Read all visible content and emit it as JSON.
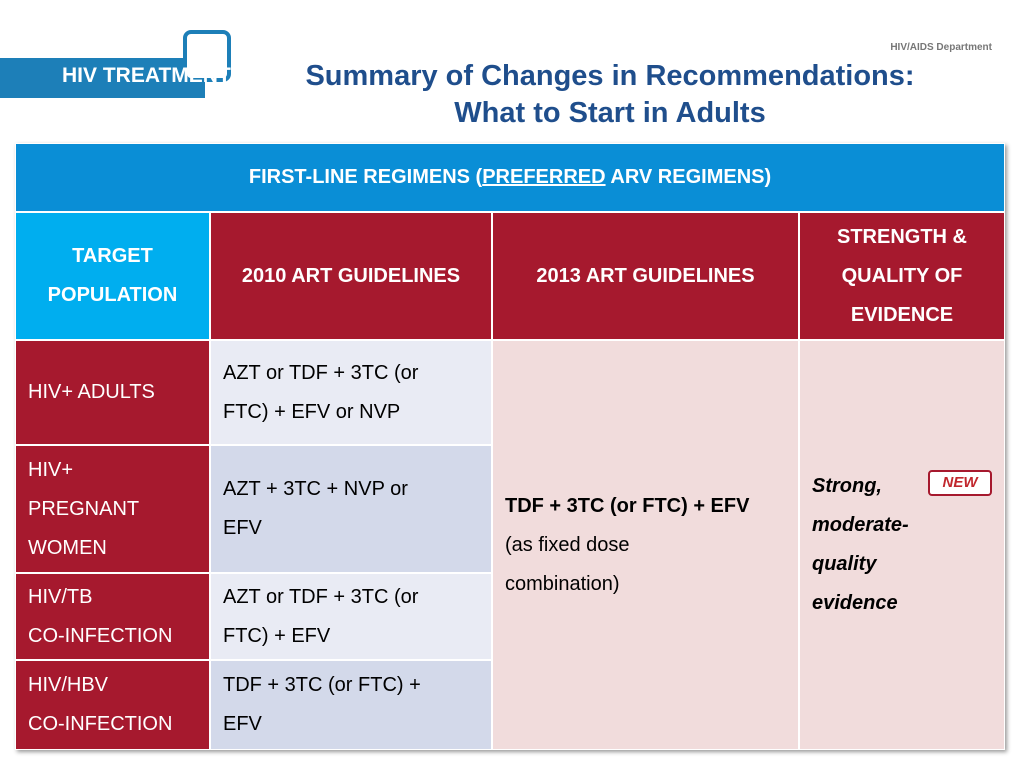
{
  "header": {
    "logo": "HIV TREATMENT",
    "department": "HIV/AIDS Department",
    "title": [
      "Summary of Changes in Recommendations:",
      "What to Start in Adults"
    ]
  },
  "table": {
    "banner": [
      "FIRST-LINE REGIMENS (",
      "PREFERRED",
      " ARV REGIMENS)"
    ],
    "columns": [
      [
        "TARGET",
        "POPULATION"
      ],
      [
        "2010 ART GUIDELINES"
      ],
      [
        "2013 ART GUIDELINES"
      ],
      [
        "STRENGTH &",
        "QUALITY OF",
        "EVIDENCE"
      ]
    ],
    "rows": [
      {
        "population": [
          "HIV+ ADULTS"
        ],
        "guideline_2010": [
          "AZT or TDF + 3TC (or",
          "FTC) + EFV or NVP"
        ]
      },
      {
        "population": [
          "HIV+",
          "PREGNANT",
          "WOMEN"
        ],
        "guideline_2010": [
          "AZT + 3TC + NVP or",
          "EFV"
        ]
      },
      {
        "population": [
          "HIV/TB",
          "CO-INFECTION"
        ],
        "guideline_2010": [
          "AZT or TDF + 3TC (or",
          "FTC) + EFV"
        ]
      },
      {
        "population": [
          "HIV/HBV",
          "CO-INFECTION"
        ],
        "guideline_2010": [
          "TDF + 3TC (or FTC) +",
          "EFV"
        ]
      }
    ],
    "guideline_2013": {
      "regimen": "TDF + 3TC (or FTC) + EFV",
      "note": [
        "(as fixed dose",
        "combination)"
      ]
    },
    "evidence": {
      "text": [
        "Strong,",
        "moderate-",
        "quality",
        "evidence"
      ],
      "badge": "NEW"
    }
  }
}
